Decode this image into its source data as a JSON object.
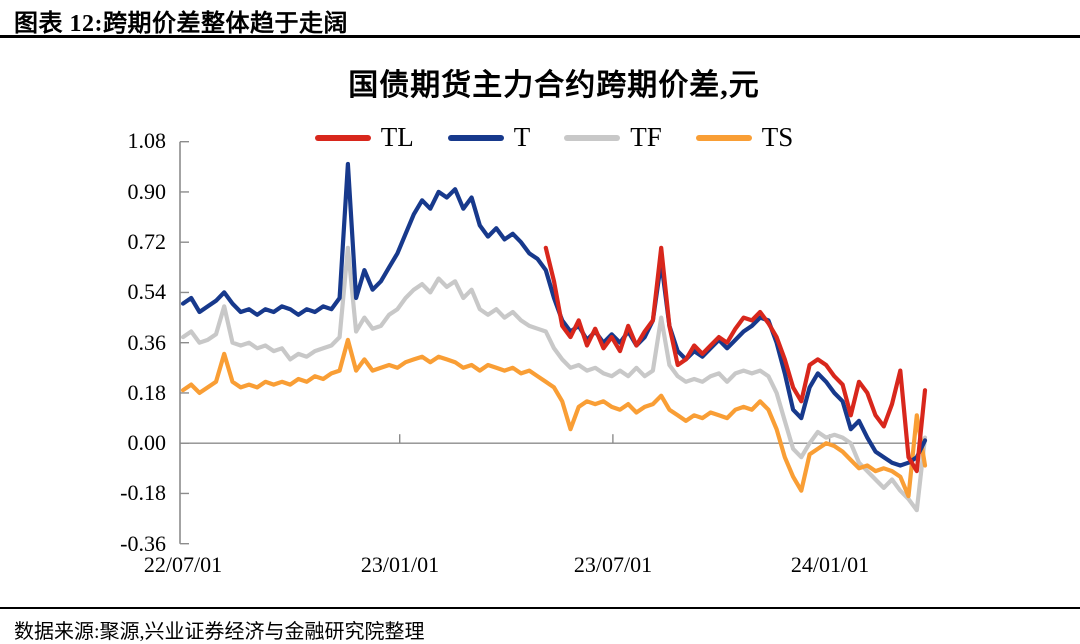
{
  "header": {
    "title": "图表 12:跨期价差整体趋于走阔"
  },
  "footer": {
    "source_note": "数据来源:聚源,兴业证券经济与金融研究院整理"
  },
  "chart_data": {
    "type": "line",
    "title": "国债期货主力合约跨期价差,元",
    "unit": "元",
    "legend_position": "top-center",
    "grid": "off",
    "axis_color": "#8c8c8c",
    "zero_line": true,
    "ylim": [
      -0.36,
      1.08
    ],
    "ytick_labels": [
      "1.08",
      "0.90",
      "0.72",
      "0.54",
      "0.36",
      "0.18",
      "0.00",
      "-0.18",
      "-0.36"
    ],
    "yticks": [
      1.08,
      0.9,
      0.72,
      0.54,
      0.36,
      0.18,
      0.0,
      -0.18,
      -0.36
    ],
    "xtick_labels": [
      "22/07/01",
      "23/01/01",
      "23/07/01",
      "24/01/01"
    ],
    "xtick_days": [
      0,
      184,
      365,
      549
    ],
    "x_start": "2022-07-01",
    "x_step_days": 7,
    "x_total_days": 630,
    "series": [
      {
        "name": "TL",
        "color": "#d8271c",
        "values": [
          null,
          null,
          null,
          null,
          null,
          null,
          null,
          null,
          null,
          null,
          null,
          null,
          null,
          null,
          null,
          null,
          null,
          null,
          null,
          null,
          null,
          null,
          null,
          null,
          null,
          null,
          null,
          null,
          null,
          null,
          null,
          null,
          null,
          null,
          null,
          null,
          null,
          null,
          null,
          null,
          null,
          null,
          null,
          null,
          0.7,
          0.58,
          0.42,
          0.38,
          0.44,
          0.35,
          0.41,
          0.34,
          0.38,
          0.33,
          0.42,
          0.35,
          0.4,
          0.44,
          0.7,
          0.42,
          0.28,
          0.3,
          0.35,
          0.32,
          0.35,
          0.38,
          0.36,
          0.41,
          0.45,
          0.44,
          0.47,
          0.43,
          0.38,
          0.3,
          0.2,
          0.15,
          0.28,
          0.3,
          0.28,
          0.24,
          0.21,
          0.1,
          0.22,
          0.18,
          0.1,
          0.06,
          0.14,
          0.26,
          -0.05,
          -0.1,
          0.19
        ]
      },
      {
        "name": "T",
        "color": "#17398c",
        "values": [
          0.5,
          0.52,
          0.47,
          0.49,
          0.51,
          0.54,
          0.5,
          0.47,
          0.48,
          0.46,
          0.48,
          0.47,
          0.49,
          0.48,
          0.46,
          0.48,
          0.47,
          0.49,
          0.48,
          0.52,
          1.0,
          0.52,
          0.62,
          0.55,
          0.58,
          0.63,
          0.68,
          0.75,
          0.82,
          0.87,
          0.84,
          0.9,
          0.88,
          0.91,
          0.84,
          0.88,
          0.78,
          0.74,
          0.77,
          0.73,
          0.75,
          0.72,
          0.68,
          0.66,
          0.62,
          0.52,
          0.44,
          0.4,
          0.42,
          0.37,
          0.4,
          0.36,
          0.39,
          0.36,
          0.4,
          0.35,
          0.38,
          0.44,
          0.65,
          0.42,
          0.33,
          0.3,
          0.33,
          0.31,
          0.34,
          0.37,
          0.34,
          0.37,
          0.4,
          0.42,
          0.45,
          0.44,
          0.36,
          0.25,
          0.12,
          0.09,
          0.2,
          0.25,
          0.22,
          0.18,
          0.15,
          0.05,
          0.08,
          0.02,
          -0.03,
          -0.05,
          -0.07,
          -0.08,
          -0.07,
          -0.05,
          0.01
        ]
      },
      {
        "name": "TF",
        "color": "#c8c8c8",
        "values": [
          0.38,
          0.4,
          0.36,
          0.37,
          0.39,
          0.49,
          0.36,
          0.35,
          0.36,
          0.34,
          0.35,
          0.33,
          0.34,
          0.3,
          0.32,
          0.31,
          0.33,
          0.34,
          0.35,
          0.38,
          0.7,
          0.4,
          0.45,
          0.41,
          0.42,
          0.46,
          0.48,
          0.52,
          0.55,
          0.57,
          0.54,
          0.59,
          0.56,
          0.58,
          0.52,
          0.55,
          0.48,
          0.46,
          0.48,
          0.45,
          0.47,
          0.44,
          0.42,
          0.41,
          0.4,
          0.34,
          0.3,
          0.27,
          0.28,
          0.26,
          0.27,
          0.25,
          0.24,
          0.26,
          0.24,
          0.27,
          0.24,
          0.26,
          0.45,
          0.28,
          0.24,
          0.22,
          0.23,
          0.22,
          0.24,
          0.25,
          0.22,
          0.25,
          0.26,
          0.25,
          0.26,
          0.24,
          0.18,
          0.08,
          -0.02,
          -0.05,
          0.0,
          0.04,
          0.02,
          0.03,
          0.02,
          0.0,
          -0.07,
          -0.1,
          -0.13,
          -0.16,
          -0.13,
          -0.17,
          -0.2,
          -0.24,
          0.02
        ]
      },
      {
        "name": "TS",
        "color": "#f99e35",
        "values": [
          0.19,
          0.21,
          0.18,
          0.2,
          0.22,
          0.32,
          0.22,
          0.2,
          0.21,
          0.2,
          0.22,
          0.21,
          0.22,
          0.21,
          0.23,
          0.22,
          0.24,
          0.23,
          0.25,
          0.26,
          0.37,
          0.26,
          0.3,
          0.26,
          0.27,
          0.28,
          0.27,
          0.29,
          0.3,
          0.31,
          0.29,
          0.31,
          0.3,
          0.29,
          0.27,
          0.28,
          0.26,
          0.28,
          0.27,
          0.26,
          0.27,
          0.25,
          0.26,
          0.24,
          0.22,
          0.2,
          0.15,
          0.05,
          0.13,
          0.15,
          0.14,
          0.15,
          0.13,
          0.12,
          0.14,
          0.11,
          0.13,
          0.14,
          0.17,
          0.12,
          0.1,
          0.08,
          0.1,
          0.09,
          0.11,
          0.1,
          0.09,
          0.12,
          0.13,
          0.12,
          0.15,
          0.12,
          0.05,
          -0.05,
          -0.12,
          -0.17,
          -0.04,
          -0.02,
          0.0,
          -0.01,
          -0.03,
          -0.06,
          -0.09,
          -0.08,
          -0.1,
          -0.09,
          -0.1,
          -0.12,
          -0.19,
          0.1,
          -0.08
        ]
      }
    ]
  }
}
